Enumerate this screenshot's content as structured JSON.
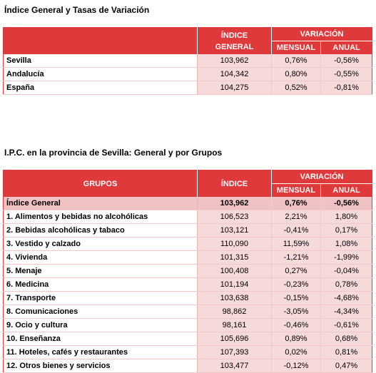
{
  "table1": {
    "title": "Índice General y Tasas de Variación",
    "header": {
      "indice_line1": "ÍNDICE",
      "indice_line2": "GENERAL",
      "variacion": "VARIACIÓN",
      "mensual": "MENSUAL",
      "anual": "ANUAL"
    },
    "rows": [
      {
        "label": "Sevilla",
        "indice": "103,962",
        "mensual": "0,76%",
        "anual": "-0,56%"
      },
      {
        "label": "Andalucía",
        "indice": "104,342",
        "mensual": "0,80%",
        "anual": "-0,55%"
      },
      {
        "label": "España",
        "indice": "104,275",
        "mensual": "0,52%",
        "anual": "-0,81%"
      }
    ]
  },
  "table2": {
    "title": "I.P.C. en la provincia de Sevilla: General y por Grupos",
    "header": {
      "grupos": "GRUPOS",
      "indice": "ÍNDICE",
      "variacion": "VARIACIÓN",
      "mensual": "MENSUAL",
      "anual": "ANUAL"
    },
    "general": {
      "label": "Índice General",
      "indice": "103,962",
      "mensual": "0,76%",
      "anual": "-0,56%"
    },
    "rows": [
      {
        "label": "1. Alimentos y bebidas no alcohólicas",
        "indice": "106,523",
        "mensual": "2,21%",
        "anual": "1,80%"
      },
      {
        "label": "2. Bebidas alcohólicas y tabaco",
        "indice": "103,121",
        "mensual": "-0,41%",
        "anual": "0,17%"
      },
      {
        "label": "3. Vestido y calzado",
        "indice": "110,090",
        "mensual": "11,59%",
        "anual": "1,08%"
      },
      {
        "label": "4. Vivienda",
        "indice": "101,315",
        "mensual": "-1,21%",
        "anual": "-1,99%"
      },
      {
        "label": "5. Menaje",
        "indice": "100,408",
        "mensual": "0,27%",
        "anual": "-0,04%"
      },
      {
        "label": "6. Medicina",
        "indice": "101,194",
        "mensual": "-0,23%",
        "anual": "0,78%"
      },
      {
        "label": "7. Transporte",
        "indice": "103,638",
        "mensual": "-0,15%",
        "anual": "-4,68%"
      },
      {
        "label": "8. Comunicaciones",
        "indice": "98,862",
        "mensual": "-3,05%",
        "anual": "-4,34%"
      },
      {
        "label": "9. Ocio y cultura",
        "indice": "98,161",
        "mensual": "-0,46%",
        "anual": "-0,61%"
      },
      {
        "label": "10. Enseñanza",
        "indice": "105,696",
        "mensual": "0,89%",
        "anual": "0,68%"
      },
      {
        "label": "11. Hoteles, cafés y restaurantes",
        "indice": "107,393",
        "mensual": "0,02%",
        "anual": "0,81%"
      },
      {
        "label": "12. Otros bienes y servicios",
        "indice": "103,477",
        "mensual": "-0,12%",
        "anual": "0,47%"
      }
    ]
  }
}
